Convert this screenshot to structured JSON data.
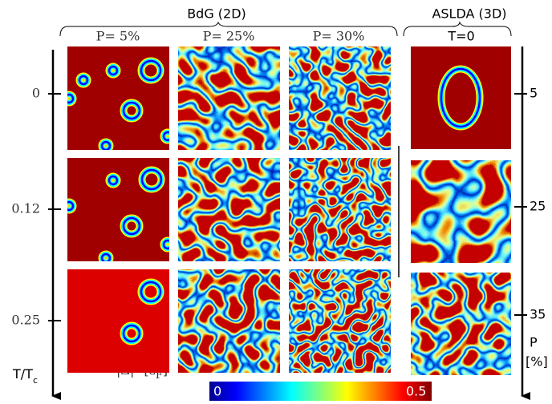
{
  "header": {
    "bdg": "BdG (2D)",
    "aslda": "ASLDA (3D)"
  },
  "columns": [
    "P= 5%",
    "P= 25%",
    "P= 30%",
    "T=0"
  ],
  "left_axis": {
    "label": "T/T",
    "subscript": "c",
    "ticks": [
      "0",
      "0.12",
      "0.25"
    ]
  },
  "right_axis": {
    "label": "P",
    "unit": "[%]",
    "ticks": [
      "5",
      "25",
      "35"
    ]
  },
  "colorbar": {
    "symbol": "|Δ|",
    "unit_open": "[ε",
    "unit_sub": "F",
    "unit_close": "]",
    "min": "0",
    "max": "0.5"
  }
}
